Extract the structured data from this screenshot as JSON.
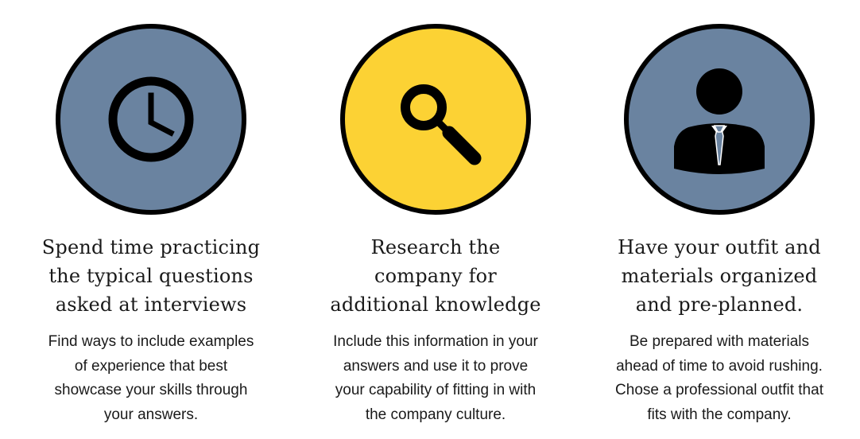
{
  "colors": {
    "slate_blue": "#6a83a0",
    "yellow": "#fcd234",
    "outline": "#000000",
    "text": "#1a1a1a"
  },
  "tips": [
    {
      "icon": "clock-icon",
      "circle_color": "#6a83a0",
      "heading_lines": [
        "Spend time practicing",
        "the typical questions",
        "asked at interviews"
      ],
      "body_lines": [
        "Find ways to include examples",
        "of experience that best",
        "showcase your skills through",
        "your answers."
      ]
    },
    {
      "icon": "magnifying-glass-icon",
      "circle_color": "#fcd234",
      "heading_lines": [
        "Research the",
        "company for",
        "additional knowledge"
      ],
      "body_lines": [
        "Include this information in your",
        "answers and use it to prove",
        "your capability of fitting in with",
        "the company culture."
      ]
    },
    {
      "icon": "businessman-icon",
      "circle_color": "#6a83a0",
      "heading_lines": [
        "Have your outfit and",
        "materials organized",
        "and pre-planned."
      ],
      "body_lines": [
        "Be prepared with materials",
        "ahead of time to avoid rushing.",
        "Chose a professional outfit that",
        "fits with the company."
      ]
    }
  ]
}
